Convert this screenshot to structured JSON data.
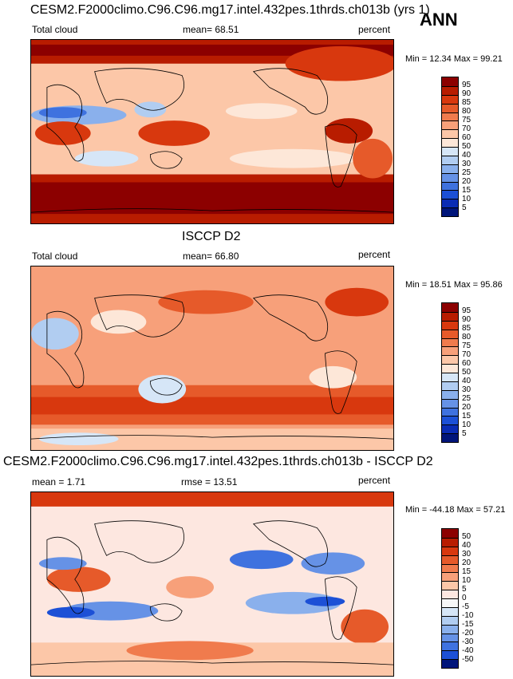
{
  "corner_label": "ANN",
  "panels": [
    {
      "id": "model",
      "title": "CESM2.F2000climo.C96.C96.mg17.intel.432pes.1thrds.ch013b (yrs 1)",
      "left_label": "Total cloud",
      "center_label": "mean=  68.51",
      "right_label": "percent",
      "minmax": "Min =  12.34 Max =  99.21",
      "colorbar": {
        "labels": [
          "95",
          "90",
          "85",
          "80",
          "75",
          "70",
          "60",
          "50",
          "40",
          "30",
          "25",
          "20",
          "15",
          "10",
          "5"
        ],
        "colors": [
          "#8c0000",
          "#b81c00",
          "#d8380e",
          "#e65a2a",
          "#f07b4d",
          "#f7a07a",
          "#fcc7a8",
          "#fde7d8",
          "#d6e6f7",
          "#b1cdf1",
          "#8ab0ec",
          "#6692e6",
          "#3f72df",
          "#1c50d6",
          "#0a2cb4",
          "#00157a"
        ]
      },
      "map_style": {
        "bg": "#fcc7a8",
        "ocean_blobs": "dense"
      }
    },
    {
      "id": "obs",
      "title": "ISCCP D2",
      "left_label": "Total cloud",
      "center_label": "mean=  66.80",
      "right_label": "percent",
      "minmax": "Min =  18.51 Max =  95.86",
      "colorbar": {
        "labels": [
          "95",
          "90",
          "85",
          "80",
          "75",
          "70",
          "60",
          "50",
          "40",
          "30",
          "25",
          "20",
          "15",
          "10",
          "5"
        ],
        "colors": [
          "#8c0000",
          "#b81c00",
          "#d8380e",
          "#e65a2a",
          "#f07b4d",
          "#f7a07a",
          "#fcc7a8",
          "#fde7d8",
          "#d6e6f7",
          "#b1cdf1",
          "#8ab0ec",
          "#6692e6",
          "#3f72df",
          "#1c50d6",
          "#0a2cb4",
          "#00157a"
        ]
      },
      "map_style": {
        "bg": "#f7a07a",
        "ocean_blobs": "light"
      }
    },
    {
      "id": "diff",
      "title": "CESM2.F2000climo.C96.C96.mg17.intel.432pes.1thrds.ch013b - ISCCP D2",
      "left_label": "mean =   1.71",
      "center_label": "rmse =  13.51",
      "right_label": "percent",
      "minmax": "Min = -44.18 Max =  57.21",
      "colorbar": {
        "labels": [
          "50",
          "40",
          "30",
          "20",
          "15",
          "10",
          "5",
          "0",
          "-5",
          "-10",
          "-15",
          "-20",
          "-30",
          "-40",
          "-50"
        ],
        "colors": [
          "#8c0000",
          "#b81c00",
          "#d8380e",
          "#e65a2a",
          "#f07b4d",
          "#f7a07a",
          "#fcc7a8",
          "#fde7e0",
          "#f7f7f7",
          "#d6e6f7",
          "#b1cdf1",
          "#8ab0ec",
          "#6692e6",
          "#3f72df",
          "#1c50d6",
          "#00157a"
        ]
      },
      "map_style": {
        "bg": "#fde7e0",
        "ocean_blobs": "diff"
      }
    }
  ]
}
